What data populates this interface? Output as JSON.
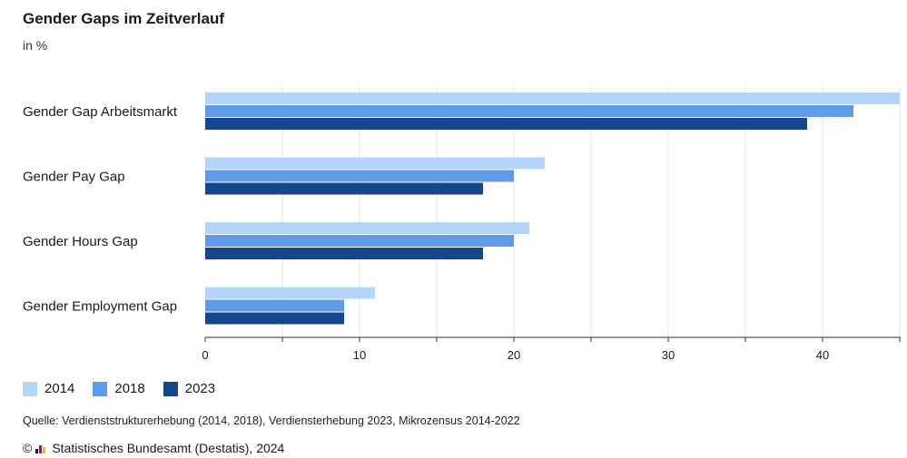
{
  "header": {
    "title": "Gender Gaps im Zeitverlauf",
    "subtitle": "in %"
  },
  "chart_data": {
    "type": "bar",
    "orientation": "horizontal",
    "categories": [
      "Gender Gap Arbeitsmarkt",
      "Gender Pay Gap",
      "Gender Hours Gap",
      "Gender Employment Gap"
    ],
    "series": [
      {
        "name": "2014",
        "color": "#b3d4fb",
        "values": [
          45,
          22,
          21,
          11
        ]
      },
      {
        "name": "2018",
        "color": "#5f9be6",
        "values": [
          42,
          20,
          20,
          9
        ]
      },
      {
        "name": "2023",
        "color": "#16478e",
        "values": [
          39,
          18,
          18,
          9
        ]
      }
    ],
    "xlim": [
      0,
      45
    ],
    "xticks": [
      0,
      10,
      20,
      30,
      40
    ],
    "grid": true,
    "legend_position": "bottom-left"
  },
  "footer": {
    "source": "Quelle: Verdienststrukturerhebung (2014, 2018), Verdiensterhebung 2023, Mikrozensus 2014-2022",
    "copyright_symbol": "©",
    "copyright": "Statistisches Bundesamt (Destatis), 2024"
  },
  "logo_colors": [
    "#1a1a1a",
    "#e2001a",
    "#f7b500"
  ]
}
